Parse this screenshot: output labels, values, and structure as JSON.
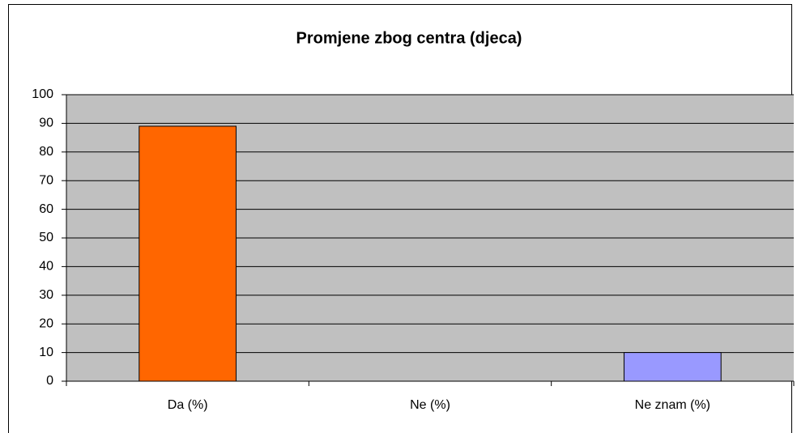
{
  "chart_data": {
    "type": "bar",
    "title": "Promjene zbog centra (djeca)",
    "categories": [
      "Da (%)",
      "Ne (%)",
      "Ne znam (%)"
    ],
    "values": [
      89,
      0,
      10
    ],
    "colors": [
      "#ff6600",
      "#993366",
      "#9999ff"
    ],
    "ylim": [
      0,
      100
    ],
    "yticks": [
      0,
      10,
      20,
      30,
      40,
      50,
      60,
      70,
      80,
      90,
      100
    ],
    "grid": true
  }
}
